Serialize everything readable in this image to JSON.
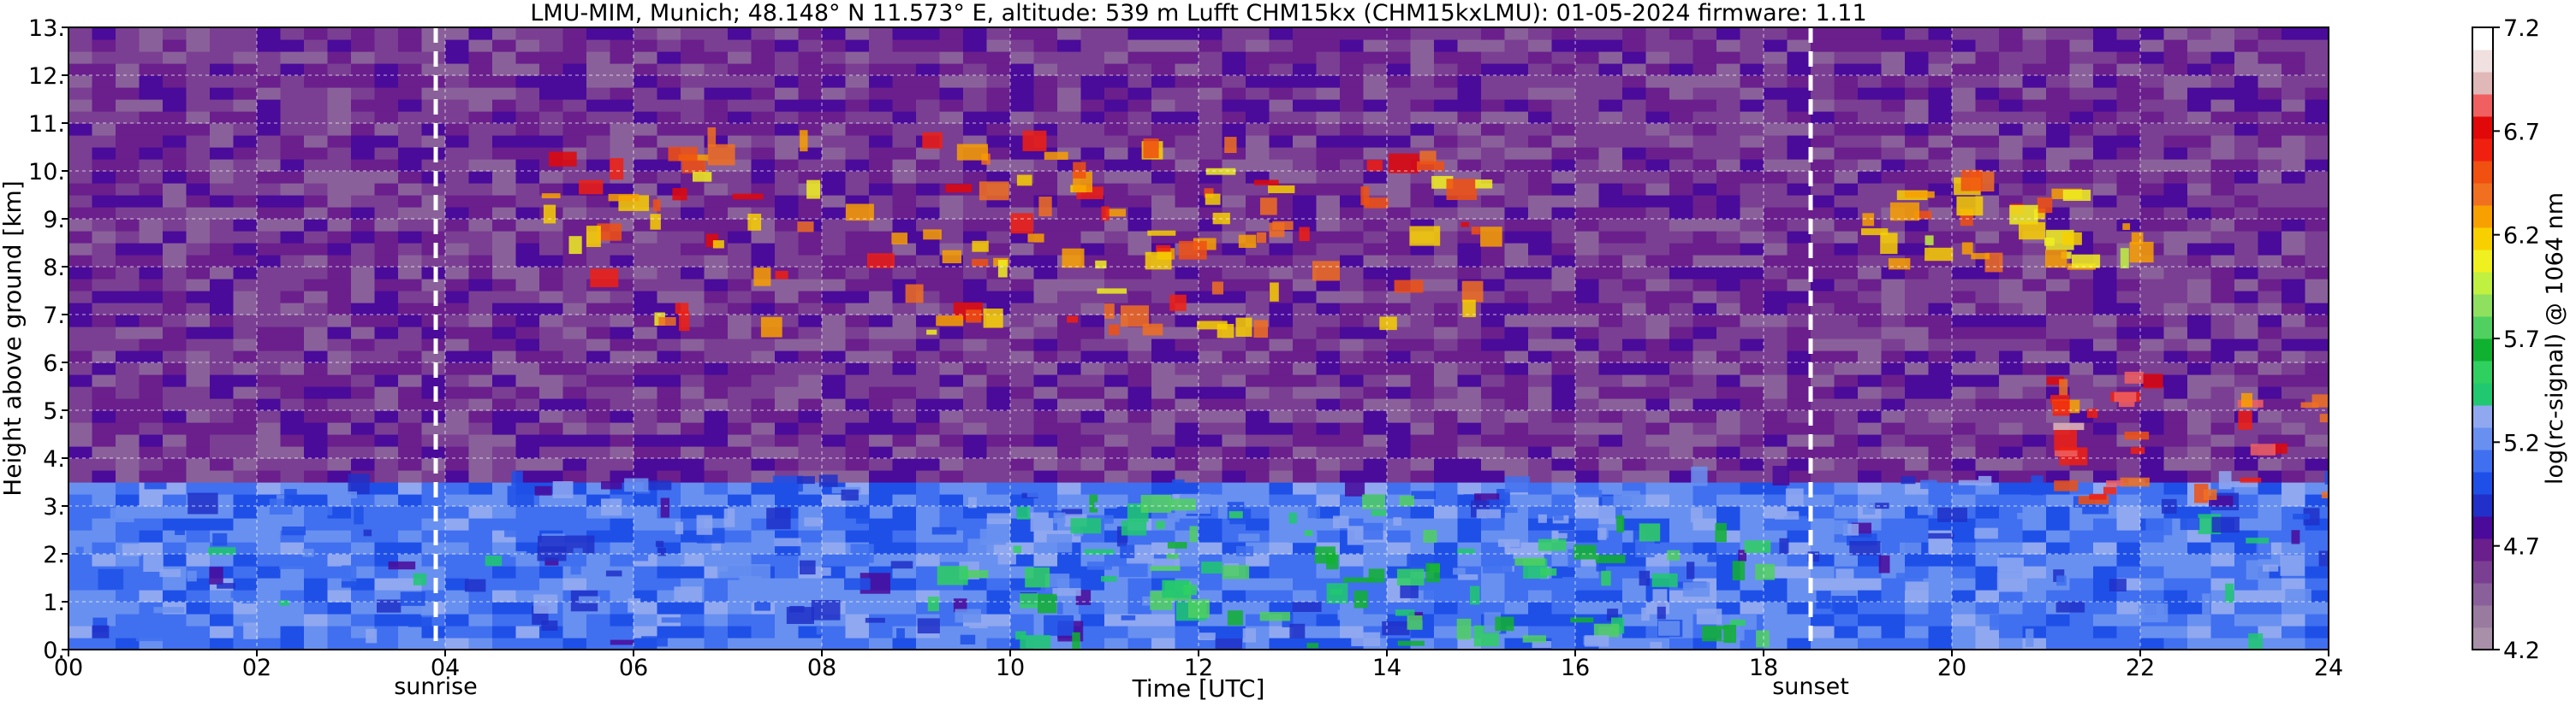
{
  "chart_data": {
    "type": "heatmap",
    "title": "LMU-MIM, Munich; 48.148° N 11.573° E, altitude: 539 m    Lufft CHM15kx (CHM15kxLMU): 01-05-2024    firmware: 1.11",
    "xlabel": "Time [UTC]",
    "ylabel": "Height above ground [km]",
    "xlim": [
      0,
      24
    ],
    "ylim": [
      0,
      13
    ],
    "x_tick_labels": [
      "00",
      "02",
      "04",
      "06",
      "08",
      "10",
      "12",
      "14",
      "16",
      "18",
      "20",
      "22",
      "24"
    ],
    "y_tick_labels": [
      "0.",
      "1.",
      "2.",
      "3.",
      "4.",
      "5.",
      "6.",
      "7.",
      "8.",
      "9.",
      "10.",
      "11.",
      "12.",
      "13."
    ],
    "grid": true,
    "annotations": [
      {
        "label": "sunrise",
        "x": 3.9
      },
      {
        "label": "sunset",
        "x": 18.5
      }
    ],
    "colorbar": {
      "label": "log(rc-signal) @ 1064 nm",
      "range": [
        4.2,
        7.2
      ],
      "tick_labels": [
        "4.2",
        "4.7",
        "5.2",
        "5.7",
        "6.2",
        "6.7",
        "7.2"
      ],
      "colors": [
        "#a890a8",
        "#9a7ba0",
        "#8a609a",
        "#7a3f92",
        "#6a1f8c",
        "#4a0a9a",
        "#2030c8",
        "#1e50e8",
        "#4070f0",
        "#6890f0",
        "#90a8f0",
        "#20c870",
        "#30d060",
        "#10b030",
        "#50d060",
        "#90e060",
        "#c0f040",
        "#f0f020",
        "#f8d000",
        "#f8a000",
        "#f07020",
        "#f05010",
        "#f02010",
        "#e00808",
        "#f06060",
        "#e0b8b8",
        "#f0e0e0",
        "#ffffff"
      ]
    },
    "features": [
      {
        "kind": "aerosol-layer",
        "t_start": 0,
        "t_end": 24,
        "h_min": 0,
        "h_max": 3.5,
        "level": 5.1
      },
      {
        "kind": "cirrus",
        "t_start": 5,
        "t_end": 15,
        "h_min": 6.5,
        "h_max": 10.5,
        "level": 6.4
      },
      {
        "kind": "cloud",
        "t_start": 21,
        "t_end": 24,
        "h_min": 3,
        "h_max": 5.6,
        "level": 6.6
      },
      {
        "kind": "cloud",
        "t_start": 19,
        "t_end": 22,
        "h_min": 7.5,
        "h_max": 9.6,
        "level": 6.3
      },
      {
        "kind": "boundary-layer",
        "t_start": 9,
        "t_end": 18,
        "h_min": 0,
        "h_max": 3,
        "level": 5.5
      }
    ]
  }
}
